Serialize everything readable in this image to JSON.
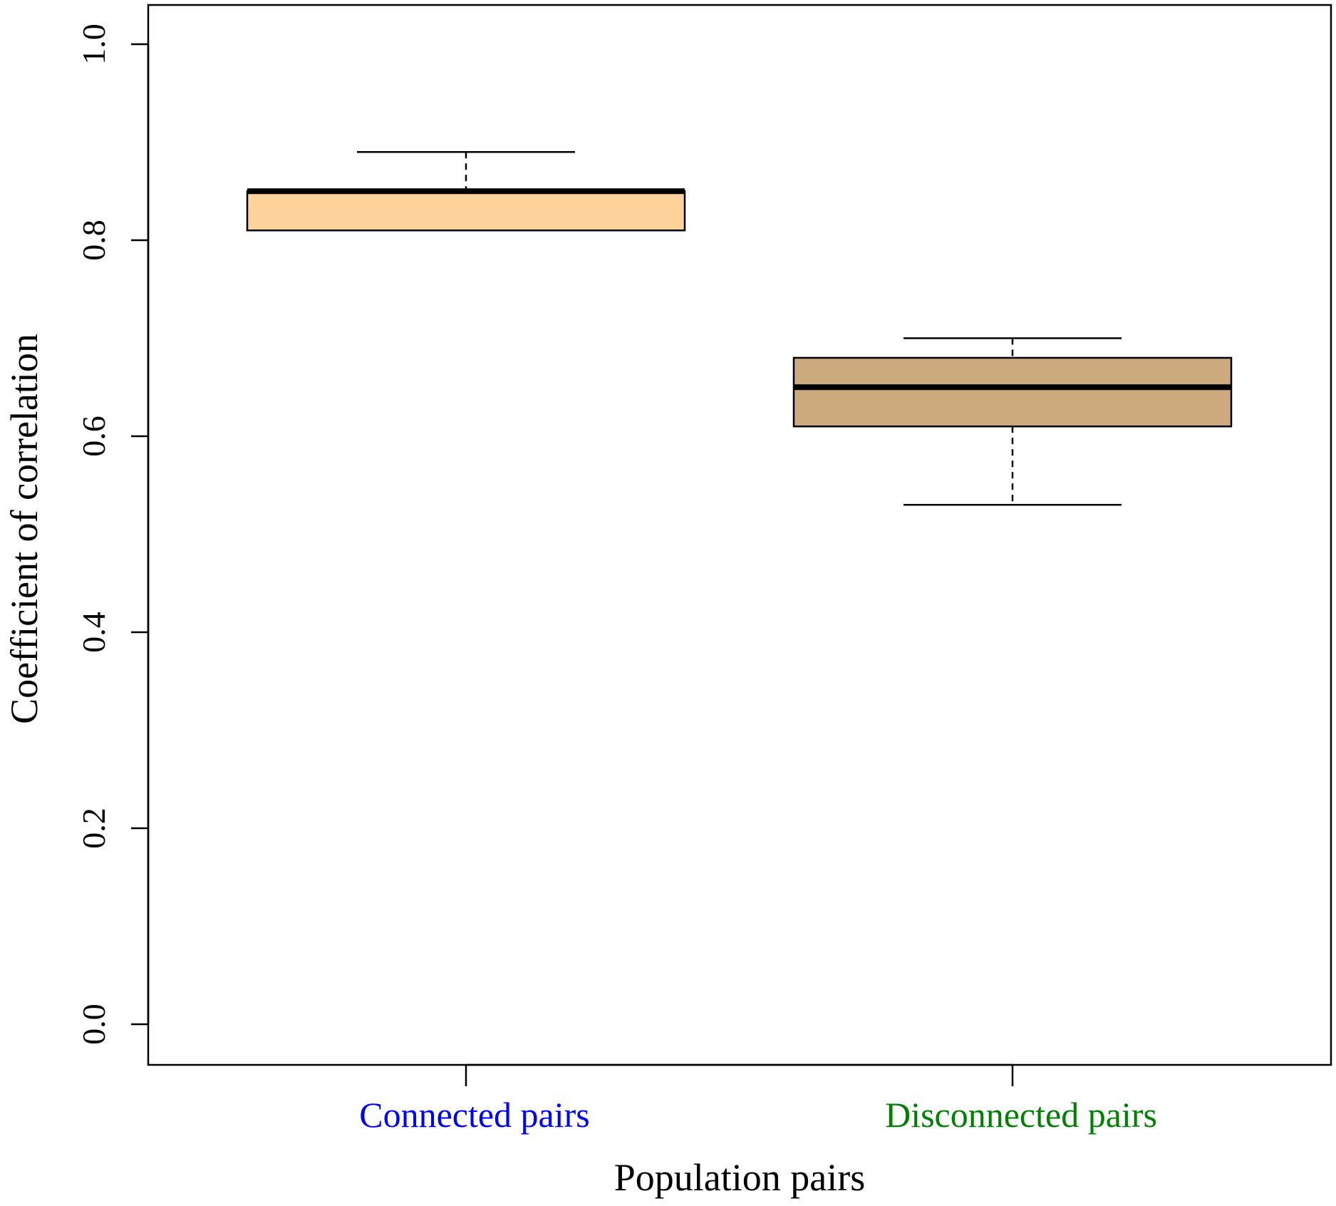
{
  "chart_data": {
    "type": "boxplot",
    "xlabel": "Population pairs",
    "ylabel": "Coefficient of correlation",
    "ylim": [
      0.0,
      1.04
    ],
    "yticks": [
      "0.0",
      "0.2",
      "0.4",
      "0.6",
      "0.8",
      "1.0"
    ],
    "categories": [
      {
        "label": "Connected pairs",
        "label_color": "#0000ff",
        "fill": "#ffd39b",
        "whisker_low": 0.81,
        "q1": 0.81,
        "median": 0.85,
        "q3": 0.85,
        "whisker_high": 0.89
      },
      {
        "label": "Disconnected pairs",
        "label_color": "#008000",
        "fill": "#cdaa7d",
        "whisker_low": 0.53,
        "q1": 0.61,
        "median": 0.65,
        "q3": 0.68,
        "whisker_high": 0.7
      }
    ],
    "grid": false,
    "legend": "none"
  }
}
